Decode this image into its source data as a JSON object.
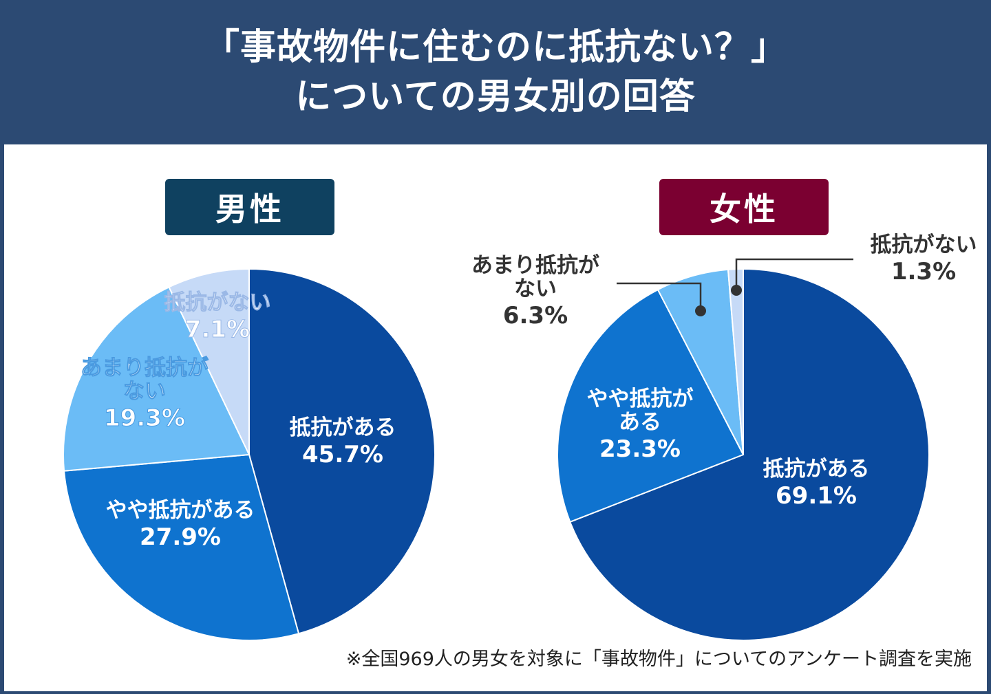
{
  "header": {
    "title_line1": "「事故物件に住むのに抵抗ない？」",
    "title_line2": "についての男女別の回答"
  },
  "badges": {
    "male": "男性",
    "female": "女性"
  },
  "footnote": "※全国969人の男女を対象に「事故物件」についてのアンケート調査を実施",
  "colors": {
    "header_bg": "#2c4a73",
    "male_badge": "#0f4160",
    "female_badge": "#7b0031",
    "slice_1": "#0a4a9e",
    "slice_2": "#0f73cf",
    "slice_3": "#6bbcf6",
    "slice_4": "#c6daf7"
  },
  "chart_data": [
    {
      "type": "pie",
      "title": "男性",
      "categories": [
        "抵抗がある",
        "やや抵抗がある",
        "あまり抵抗がない",
        "抵抗がない"
      ],
      "values": [
        45.7,
        27.9,
        19.3,
        7.1
      ],
      "labels": [
        {
          "lines": [
            "抵抗がある",
            "45.7%"
          ]
        },
        {
          "lines": [
            "やや抵抗がある",
            "27.9%"
          ]
        },
        {
          "lines": [
            "あまり抵抗が",
            "ない",
            "19.3%"
          ]
        },
        {
          "lines": [
            "抵抗がない",
            "7.1%"
          ]
        }
      ]
    },
    {
      "type": "pie",
      "title": "女性",
      "categories": [
        "抵抗がある",
        "やや抵抗がある",
        "あまり抵抗がない",
        "抵抗がない"
      ],
      "values": [
        69.1,
        23.3,
        6.3,
        1.3
      ],
      "labels": [
        {
          "lines": [
            "抵抗がある",
            "69.1%"
          ]
        },
        {
          "lines": [
            "やや抵抗が",
            "ある",
            "23.3%"
          ]
        },
        {
          "lines": [
            "あまり抵抗が",
            "ない",
            "6.3%"
          ]
        },
        {
          "lines": [
            "抵抗がない",
            "1.3%"
          ]
        }
      ]
    }
  ]
}
